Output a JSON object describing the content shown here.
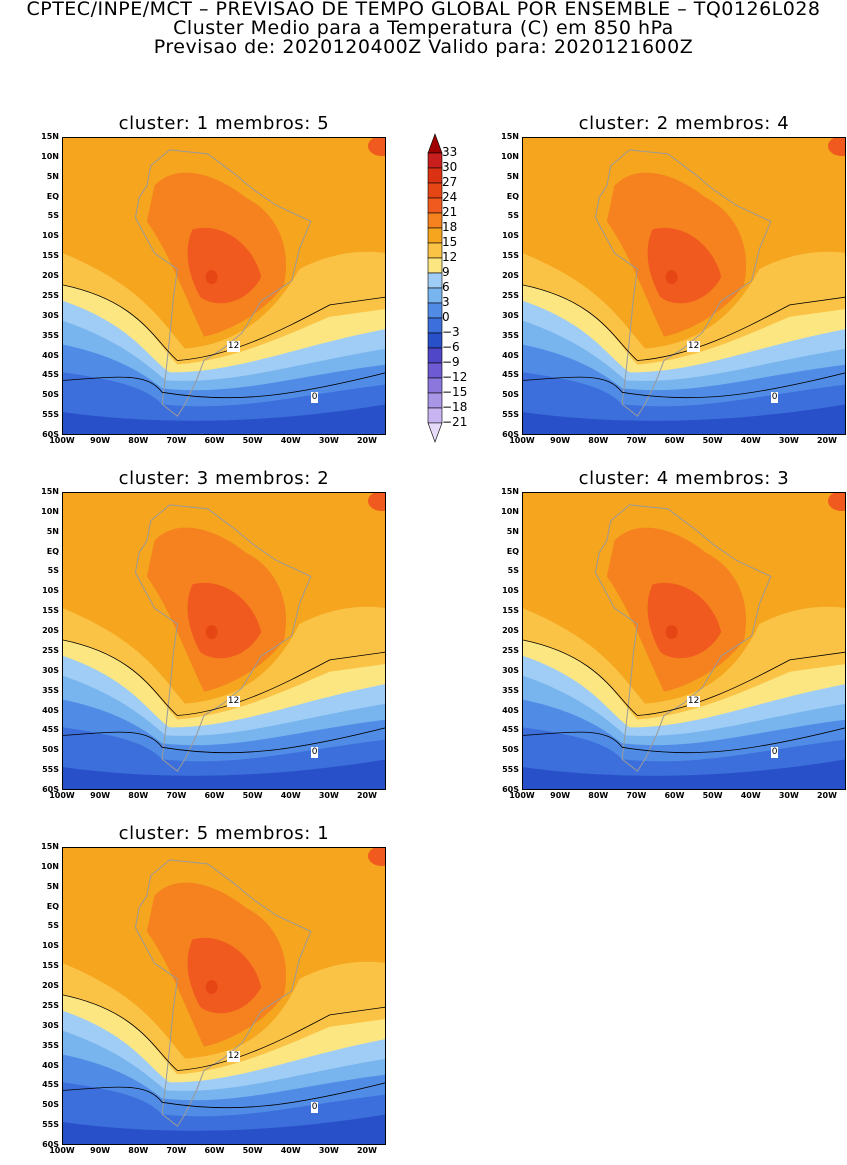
{
  "header": {
    "line1": "CPTEC/INPE/MCT – PREVISAO DE TEMPO GLOBAL POR ENSEMBLE – TQ0126L028",
    "line2": "Cluster Medio para a Temperatura (C) em 850 hPa",
    "line3": "Previsao de: 2020120400Z    Valido para: 2020121600Z"
  },
  "lat_labels": [
    "15N",
    "10N",
    "5N",
    "EQ",
    "5S",
    "10S",
    "15S",
    "20S",
    "25S",
    "30S",
    "35S",
    "40S",
    "45S",
    "50S",
    "55S",
    "60S"
  ],
  "lon_labels": [
    "100W",
    "90W",
    "80W",
    "70W",
    "60W",
    "50W",
    "40W",
    "30W",
    "20W"
  ],
  "colorbar": {
    "levels": [
      "33",
      "30",
      "27",
      "24",
      "21",
      "18",
      "15",
      "12",
      "9",
      "6",
      "3",
      "0",
      "−3",
      "−6",
      "−9",
      "−12",
      "−15",
      "−18",
      "−21"
    ],
    "colors": [
      "#a00000",
      "#c81e1e",
      "#dc3214",
      "#e64614",
      "#f05a1e",
      "#f5821e",
      "#f5a51e",
      "#fbc346",
      "#fbe682",
      "#a0cdf5",
      "#78b4ee",
      "#508ce6",
      "#3c6edc",
      "#2850c8",
      "#5046c8",
      "#6e5ad2",
      "#8c78dc",
      "#aa96e6",
      "#c8b4f0",
      "#e6dcfa"
    ]
  },
  "contour_labels": [
    "12",
    "0"
  ],
  "panels": [
    {
      "title": "cluster: 1   membros: 5"
    },
    {
      "title": "cluster: 2   membros: 4"
    },
    {
      "title": "cluster: 3   membros: 2"
    },
    {
      "title": "cluster: 4   membros: 3"
    },
    {
      "title": "cluster: 5   membros: 1"
    }
  ]
}
